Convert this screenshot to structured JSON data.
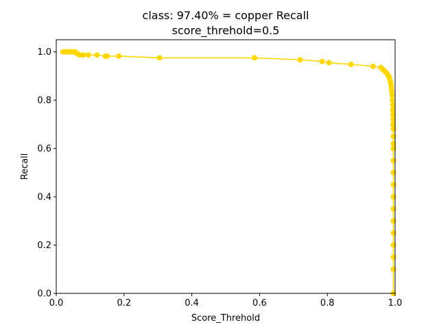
{
  "chart_data": {
    "type": "line",
    "title": "class: 97.40% = copper Recall",
    "subtitle": "score_threhold=0.5",
    "xlabel": "Score_Threhold",
    "ylabel": "Recall",
    "xlim": [
      0.0,
      1.0
    ],
    "ylim": [
      0.0,
      1.05
    ],
    "xticks": [
      0.0,
      0.2,
      0.4,
      0.6,
      0.8,
      1.0
    ],
    "xtick_labels": [
      "0.0",
      "0.2",
      "0.4",
      "0.6",
      "0.8",
      "1.0"
    ],
    "yticks": [
      0.0,
      0.2,
      0.4,
      0.6,
      0.8,
      1.0
    ],
    "ytick_labels": [
      "0.0",
      "0.2",
      "0.4",
      "0.6",
      "0.8",
      "1.0"
    ],
    "grid": false,
    "line_color": "#FFD700",
    "marker": "circle",
    "series": [
      {
        "x": [
          0.02,
          0.025,
          0.03,
          0.035,
          0.04,
          0.045,
          0.05,
          0.055,
          0.06,
          0.065,
          0.07,
          0.08,
          0.095,
          0.12,
          0.145,
          0.15,
          0.185,
          0.305,
          0.585,
          0.72,
          0.785,
          0.805,
          0.87,
          0.935,
          0.958,
          0.963,
          0.968,
          0.972,
          0.976,
          0.979,
          0.982,
          0.984,
          0.986,
          0.988,
          0.989,
          0.99,
          0.991,
          0.992,
          0.993,
          0.993,
          0.994,
          0.994,
          0.994,
          0.995,
          0.995,
          0.995,
          0.995,
          0.995,
          0.995,
          0.995,
          0.995,
          0.995,
          0.995,
          0.995,
          0.995,
          0.995,
          0.995,
          0.995
        ],
        "y": [
          1.0,
          1.0,
          1.0,
          1.0,
          1.0,
          1.0,
          1.0,
          1.0,
          0.995,
          0.99,
          0.987,
          0.987,
          0.987,
          0.987,
          0.982,
          0.982,
          0.982,
          0.975,
          0.975,
          0.967,
          0.96,
          0.955,
          0.948,
          0.94,
          0.935,
          0.928,
          0.922,
          0.916,
          0.91,
          0.904,
          0.897,
          0.888,
          0.878,
          0.866,
          0.853,
          0.838,
          0.82,
          0.8,
          0.78,
          0.76,
          0.74,
          0.72,
          0.7,
          0.68,
          0.65,
          0.62,
          0.6,
          0.55,
          0.5,
          0.45,
          0.4,
          0.35,
          0.3,
          0.25,
          0.2,
          0.15,
          0.1,
          0.0
        ]
      }
    ]
  }
}
